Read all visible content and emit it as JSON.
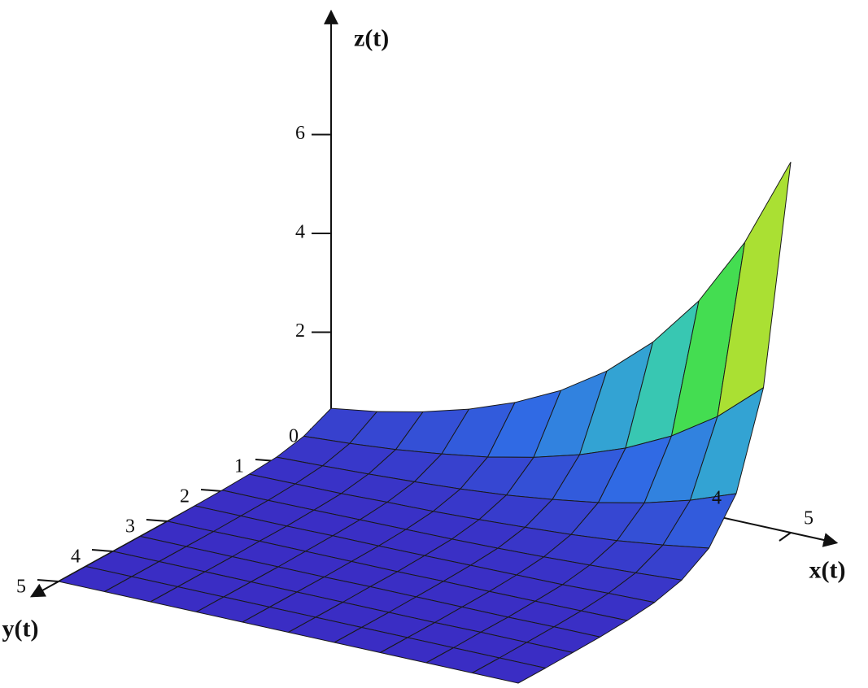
{
  "chart_data": {
    "type": "surface",
    "xlabel": "x(t)",
    "ylabel": "y(t)",
    "zlabel": "z(t)",
    "x": [
      0,
      0.5,
      1,
      1.5,
      2,
      2.5,
      3,
      3.5,
      4,
      4.5,
      5
    ],
    "y": [
      0,
      0.5,
      1,
      1.5,
      2,
      2.5,
      3,
      3.5,
      4,
      4.5,
      5
    ],
    "z": [
      [
        0.46,
        0.6,
        0.8,
        1.06,
        1.4,
        1.85,
        2.45,
        3.24,
        4.28,
        5.67,
        7.5
      ],
      [
        0.2,
        0.26,
        0.34,
        0.46,
        0.6,
        0.8,
        1.06,
        1.4,
        1.85,
        2.45,
        3.24
      ],
      [
        0.08,
        0.11,
        0.15,
        0.2,
        0.26,
        0.34,
        0.46,
        0.6,
        0.8,
        1.06,
        1.4
      ],
      [
        0.04,
        0.05,
        0.06,
        0.09,
        0.11,
        0.15,
        0.2,
        0.26,
        0.34,
        0.46,
        0.6
      ],
      [
        0.02,
        0.02,
        0.03,
        0.04,
        0.05,
        0.06,
        0.08,
        0.11,
        0.15,
        0.2,
        0.26
      ],
      [
        0.01,
        0.01,
        0.01,
        0.02,
        0.02,
        0.03,
        0.04,
        0.05,
        0.06,
        0.09,
        0.11
      ],
      [
        0,
        0,
        0.01,
        0.01,
        0.01,
        0.01,
        0.02,
        0.02,
        0.03,
        0.04,
        0.05
      ],
      [
        0,
        0,
        0,
        0,
        0,
        0.01,
        0.01,
        0.01,
        0.01,
        0.02,
        0.02
      ],
      [
        0,
        0,
        0,
        0,
        0,
        0,
        0,
        0,
        0.01,
        0.01,
        0.01
      ],
      [
        0,
        0,
        0,
        0,
        0,
        0,
        0,
        0,
        0,
        0,
        0
      ],
      [
        0,
        0,
        0,
        0,
        0,
        0,
        0,
        0,
        0,
        0,
        0
      ]
    ],
    "xlim": [
      0,
      5.5
    ],
    "ylim": [
      0,
      5.5
    ],
    "zlim": [
      0,
      8.5
    ],
    "xticks": [
      4,
      5
    ],
    "yticks": [
      0,
      1,
      2,
      3,
      4,
      5
    ],
    "zticks": [
      2,
      4,
      6
    ],
    "colorscale": [
      "#3a2dc4",
      "#2f6fe6",
      "#36c2c8",
      "#46e23c",
      "#c8e030",
      "#e8601c",
      "#e02a14"
    ]
  }
}
